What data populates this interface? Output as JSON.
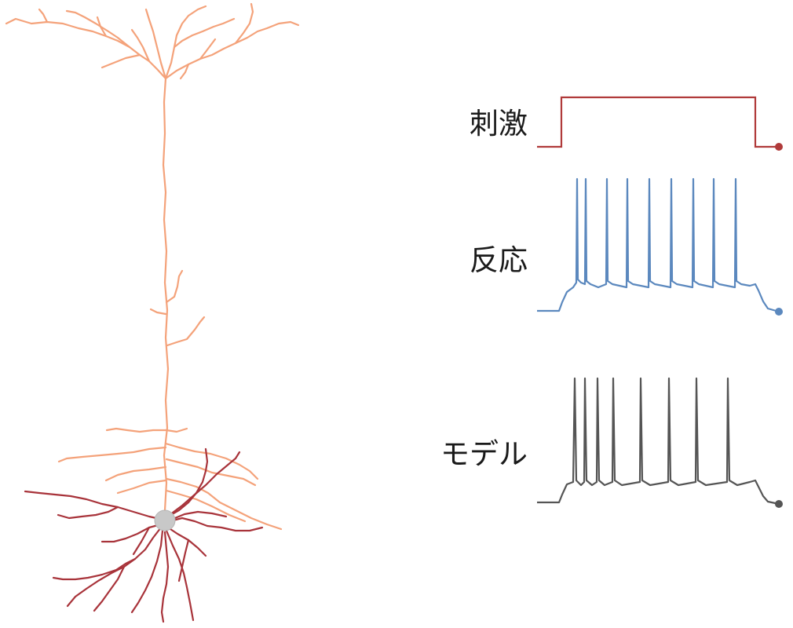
{
  "neuron": {
    "apical_color": "#F4A27A",
    "basal_color": "#A8333A",
    "soma_color": "#C8C8C8"
  },
  "traces": [
    {
      "key": "stimulus",
      "label": "刺激",
      "color": "#B03A3A"
    },
    {
      "key": "response",
      "label": "反応",
      "color": "#5B88BE"
    },
    {
      "key": "model",
      "label": "モデル",
      "color": "#555555"
    }
  ]
}
